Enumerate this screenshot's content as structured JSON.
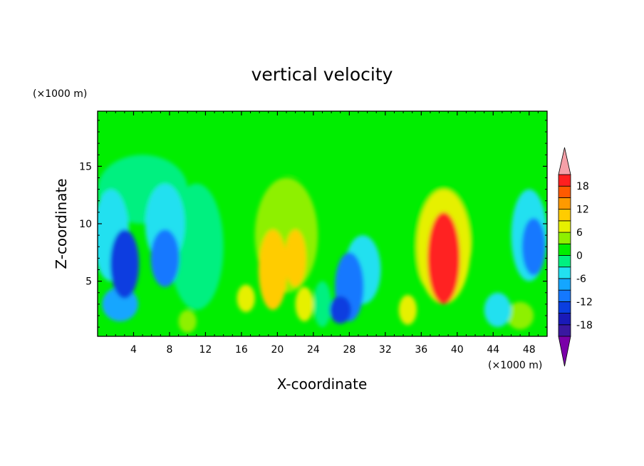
{
  "chart_data": {
    "type": "heatmap",
    "title": "vertical velocity",
    "xlabel": "X-coordinate",
    "ylabel": "Z-coordinate",
    "x_unit": "(×1000 m)",
    "y_unit": "(×1000 m)",
    "xlim": [
      0,
      50
    ],
    "ylim": [
      0.2,
      19.8
    ],
    "x_ticks": [
      4,
      8,
      12,
      16,
      20,
      24,
      28,
      32,
      36,
      40,
      44,
      48
    ],
    "x_tick_labels": [
      "4",
      "8",
      "12",
      "16",
      "20",
      "24",
      "28",
      "32",
      "36",
      "40",
      "44",
      "48"
    ],
    "y_ticks": [
      5,
      10,
      15
    ],
    "y_tick_labels": [
      "5",
      "10",
      "15"
    ],
    "colorbar": {
      "levels": [
        -21,
        -18,
        -15,
        -12,
        -9,
        -6,
        -3,
        0,
        3,
        6,
        9,
        12,
        15,
        18,
        21
      ],
      "tick_values": [
        18,
        12,
        6,
        0,
        -6,
        -12,
        -18
      ],
      "tick_labels": [
        "18",
        "12",
        "6",
        "0",
        "-6",
        "-12",
        "-18"
      ],
      "colors": [
        "#7a00a8",
        "#3a18a0",
        "#1a1ab8",
        "#0a3ee0",
        "#1478ff",
        "#14a6ff",
        "#22e0f0",
        "#00f080",
        "#00ee00",
        "#8ef000",
        "#e6f000",
        "#ffcc00",
        "#ff9a00",
        "#ff5a00",
        "#ff2020",
        "#f5a0a8"
      ]
    },
    "cells": [
      {
        "x": 3.0,
        "z": 6.5,
        "sx": 1.6,
        "sz": 3.0,
        "value": -14
      },
      {
        "x": 2.5,
        "z": 3.0,
        "sx": 2.0,
        "sz": 1.5,
        "value": -8
      },
      {
        "x": 1.5,
        "z": 9.0,
        "sx": 2.0,
        "sz": 4.0,
        "value": -6
      },
      {
        "x": 7.5,
        "z": 7.0,
        "sx": 1.6,
        "sz": 2.5,
        "value": -12
      },
      {
        "x": 7.5,
        "z": 10.0,
        "sx": 2.2,
        "sz": 3.5,
        "value": -6
      },
      {
        "x": 10.0,
        "z": 1.5,
        "sx": 1.0,
        "sz": 1.0,
        "value": 4
      },
      {
        "x": 11.0,
        "z": 8.0,
        "sx": 3.0,
        "sz": 5.5,
        "value": -3
      },
      {
        "x": 5.0,
        "z": 13.0,
        "sx": 5.0,
        "sz": 3.0,
        "value": -3
      },
      {
        "x": 16.5,
        "z": 3.5,
        "sx": 1.0,
        "sz": 1.2,
        "value": 6
      },
      {
        "x": 19.5,
        "z": 6.0,
        "sx": 1.6,
        "sz": 3.5,
        "value": 10
      },
      {
        "x": 22.0,
        "z": 7.0,
        "sx": 1.2,
        "sz": 2.5,
        "value": 11
      },
      {
        "x": 23.0,
        "z": 3.0,
        "sx": 1.0,
        "sz": 1.5,
        "value": 8
      },
      {
        "x": 21.0,
        "z": 9.0,
        "sx": 3.5,
        "sz": 5.0,
        "value": 4
      },
      {
        "x": 28.0,
        "z": 4.5,
        "sx": 1.6,
        "sz": 3.0,
        "value": -12
      },
      {
        "x": 27.0,
        "z": 2.5,
        "sx": 1.2,
        "sz": 1.2,
        "value": -15
      },
      {
        "x": 29.5,
        "z": 6.0,
        "sx": 2.0,
        "sz": 3.0,
        "value": -6
      },
      {
        "x": 25.0,
        "z": 3.0,
        "sx": 1.0,
        "sz": 2.0,
        "value": -3
      },
      {
        "x": 34.5,
        "z": 2.5,
        "sx": 1.0,
        "sz": 1.3,
        "value": 6
      },
      {
        "x": 38.5,
        "z": 7.0,
        "sx": 1.8,
        "sz": 4.0,
        "value": 18
      },
      {
        "x": 38.5,
        "z": 8.0,
        "sx": 3.0,
        "sz": 5.0,
        "value": 6
      },
      {
        "x": 38.0,
        "z": 10.0,
        "sx": 4.0,
        "sz": 6.0,
        "value": 2
      },
      {
        "x": 48.5,
        "z": 8.0,
        "sx": 1.3,
        "sz": 2.5,
        "value": -12
      },
      {
        "x": 48.0,
        "z": 9.0,
        "sx": 2.0,
        "sz": 4.0,
        "value": -6
      },
      {
        "x": 44.5,
        "z": 2.5,
        "sx": 1.5,
        "sz": 1.5,
        "value": -6
      },
      {
        "x": 47.0,
        "z": 2.0,
        "sx": 1.5,
        "sz": 1.2,
        "value": 4
      },
      {
        "x": 24.0,
        "z": 17.0,
        "sx": 6.0,
        "sz": 3.0,
        "value": 1
      }
    ]
  }
}
